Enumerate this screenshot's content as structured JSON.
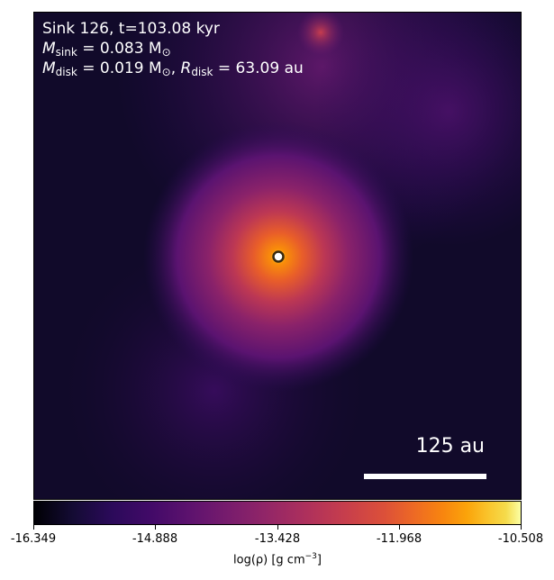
{
  "plot": {
    "title_line": "Sink 126, t=103.08 kyr",
    "msink_label": "M",
    "msink_sub": "sink",
    "msink_value": " = 0.083 M",
    "msink_unit_sub": "⊙",
    "mdisk_label": "M",
    "mdisk_sub": "disk",
    "mdisk_value": " = 0.019 M",
    "mdisk_unit_sub": "⊙",
    "rdisk_sep": ", ",
    "rdisk_label": "R",
    "rdisk_sub": "disk",
    "rdisk_value": " = 63.09 au",
    "scale_label": "125 au"
  },
  "colorbar": {
    "colormap": "inferno",
    "ticks": [
      "-16.349",
      "-14.888",
      "-13.428",
      "-11.968",
      "-10.508"
    ],
    "label_main": "log(ρ) [g cm",
    "label_exp": "−3",
    "label_end": "]"
  }
}
